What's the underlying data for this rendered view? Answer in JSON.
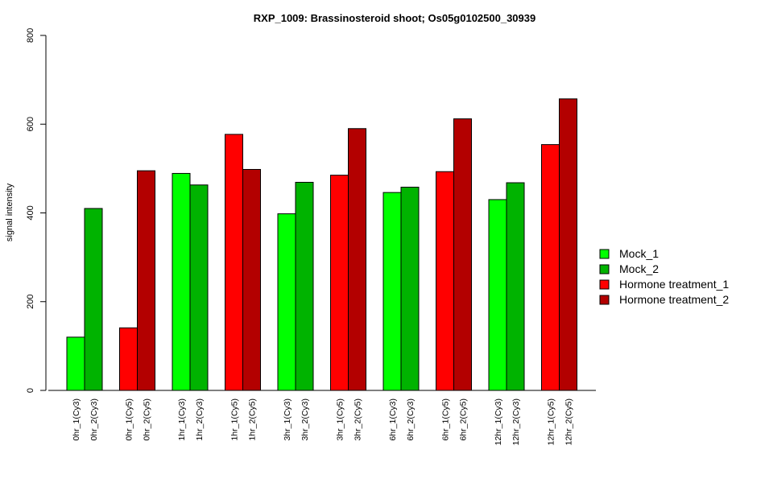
{
  "chart_data": {
    "type": "bar",
    "title": "RXP_1009: Brassinosteroid shoot; Os05g0102500_30939",
    "xlabel": "",
    "ylabel": "signal intensity",
    "ylim": [
      0,
      800
    ],
    "yticks": [
      0,
      200,
      400,
      600,
      800
    ],
    "grid": false,
    "legend_position": "right",
    "legend": [
      {
        "name": "Mock_1",
        "color": "#00ff00"
      },
      {
        "name": "Mock_2",
        "color": "#00b300"
      },
      {
        "name": "Hormone treatment_1",
        "color": "#ff0000"
      },
      {
        "name": "Hormone treatment_2",
        "color": "#b30000"
      }
    ],
    "bars": [
      {
        "label": "0hr_1(Cy3)",
        "value": 120,
        "series": "Mock_1"
      },
      {
        "label": "0hr_2(Cy3)",
        "value": 410,
        "series": "Mock_2"
      },
      {
        "label": "0hr_1(Cy5)",
        "value": 141,
        "series": "Hormone treatment_1"
      },
      {
        "label": "0hr_2(Cy5)",
        "value": 495,
        "series": "Hormone treatment_2"
      },
      {
        "label": "1hr_1(Cy3)",
        "value": 489,
        "series": "Mock_1"
      },
      {
        "label": "1hr_2(Cy3)",
        "value": 463,
        "series": "Mock_2"
      },
      {
        "label": "1hr_1(Cy5)",
        "value": 577,
        "series": "Hormone treatment_1"
      },
      {
        "label": "1hr_2(Cy5)",
        "value": 498,
        "series": "Hormone treatment_2"
      },
      {
        "label": "3hr_1(Cy3)",
        "value": 398,
        "series": "Mock_1"
      },
      {
        "label": "3hr_2(Cy3)",
        "value": 469,
        "series": "Mock_2"
      },
      {
        "label": "3hr_1(Cy5)",
        "value": 485,
        "series": "Hormone treatment_1"
      },
      {
        "label": "3hr_2(Cy5)",
        "value": 590,
        "series": "Hormone treatment_2"
      },
      {
        "label": "6hr_1(Cy3)",
        "value": 446,
        "series": "Mock_1"
      },
      {
        "label": "6hr_2(Cy3)",
        "value": 458,
        "series": "Mock_2"
      },
      {
        "label": "6hr_1(Cy5)",
        "value": 493,
        "series": "Hormone treatment_1"
      },
      {
        "label": "6hr_2(Cy5)",
        "value": 612,
        "series": "Hormone treatment_2"
      },
      {
        "label": "12hr_1(Cy3)",
        "value": 430,
        "series": "Mock_1"
      },
      {
        "label": "12hr_2(Cy3)",
        "value": 468,
        "series": "Mock_2"
      },
      {
        "label": "12hr_1(Cy5)",
        "value": 554,
        "series": "Hormone treatment_1"
      },
      {
        "label": "12hr_2(Cy5)",
        "value": 657,
        "series": "Hormone treatment_2"
      }
    ]
  }
}
